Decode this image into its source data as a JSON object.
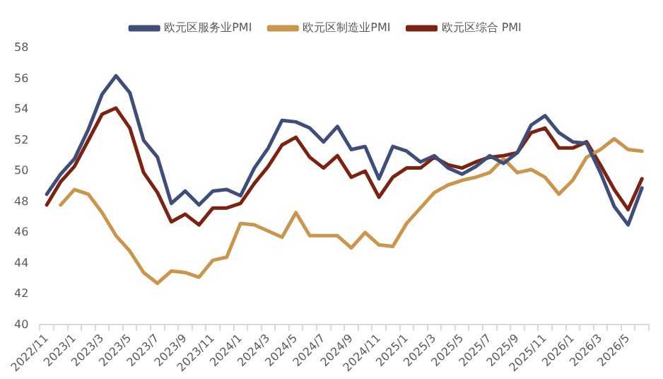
{
  "chart_data": {
    "type": "line",
    "categories": [
      "2022/11",
      null,
      "2023/1",
      null,
      "2023/3",
      null,
      "2023/5",
      null,
      "2023/7",
      null,
      "2023/9",
      null,
      "2023/11",
      null,
      "2024/1",
      null,
      "2024/3",
      null,
      "2024/5",
      null,
      "2024/7",
      null,
      "2024/9",
      null,
      "2024/11",
      null,
      "2025/1",
      null,
      "2025/3",
      null,
      "2025/5",
      null,
      "2025/7",
      null,
      "2025/9",
      null,
      "2025/11",
      null,
      "2026/1",
      null,
      "2026/3",
      null,
      "2026/5",
      null
    ],
    "series": [
      {
        "name": "欧元区服务业PMI",
        "color": "#3f4d7b",
        "values": [
          48.5,
          49.8,
          50.8,
          52.7,
          55.0,
          56.2,
          55.1,
          52.0,
          50.9,
          47.9,
          48.7,
          47.8,
          48.7,
          48.8,
          48.4,
          50.2,
          51.5,
          53.3,
          53.2,
          52.8,
          51.9,
          52.9,
          51.4,
          51.6,
          49.5,
          51.6,
          51.3,
          50.6,
          51.0,
          50.2,
          49.8,
          50.3,
          51.0,
          50.5,
          51.2,
          53.0,
          53.6,
          52.5,
          51.9,
          51.8,
          49.9,
          47.7,
          46.5,
          48.9
        ]
      },
      {
        "name": "欧元区制造业PMI",
        "color": "#c9964c",
        "values": [
          null,
          47.8,
          48.8,
          48.5,
          47.3,
          45.8,
          44.8,
          43.4,
          42.7,
          43.5,
          43.4,
          43.1,
          44.2,
          44.4,
          46.6,
          46.5,
          46.1,
          45.7,
          47.3,
          45.8,
          45.8,
          45.8,
          45.0,
          46.0,
          45.2,
          45.1,
          46.6,
          47.6,
          48.6,
          49.1,
          49.4,
          49.6,
          49.9,
          50.8,
          49.9,
          50.1,
          49.6,
          48.5,
          49.4,
          50.9,
          51.4,
          52.1,
          51.4,
          51.3
        ]
      },
      {
        "name": "欧元区综合 PMI",
        "color": "#7b2210",
        "values": [
          47.8,
          49.3,
          50.3,
          52.0,
          53.7,
          54.1,
          52.8,
          49.9,
          48.6,
          46.7,
          47.2,
          46.5,
          47.6,
          47.6,
          47.9,
          49.2,
          50.3,
          51.7,
          52.2,
          50.9,
          50.2,
          51.0,
          49.6,
          50.0,
          48.3,
          49.6,
          50.2,
          50.2,
          50.9,
          50.4,
          50.2,
          50.6,
          50.9,
          51.0,
          51.2,
          52.5,
          52.8,
          51.5,
          51.5,
          51.9,
          50.4,
          48.8,
          47.5,
          49.5
        ]
      }
    ],
    "ylim": [
      40,
      58
    ],
    "yticks": [
      40,
      42,
      44,
      46,
      48,
      50,
      52,
      54,
      56,
      58
    ],
    "grid": false,
    "legend": "top",
    "marker": "none",
    "line_style": "solid"
  }
}
